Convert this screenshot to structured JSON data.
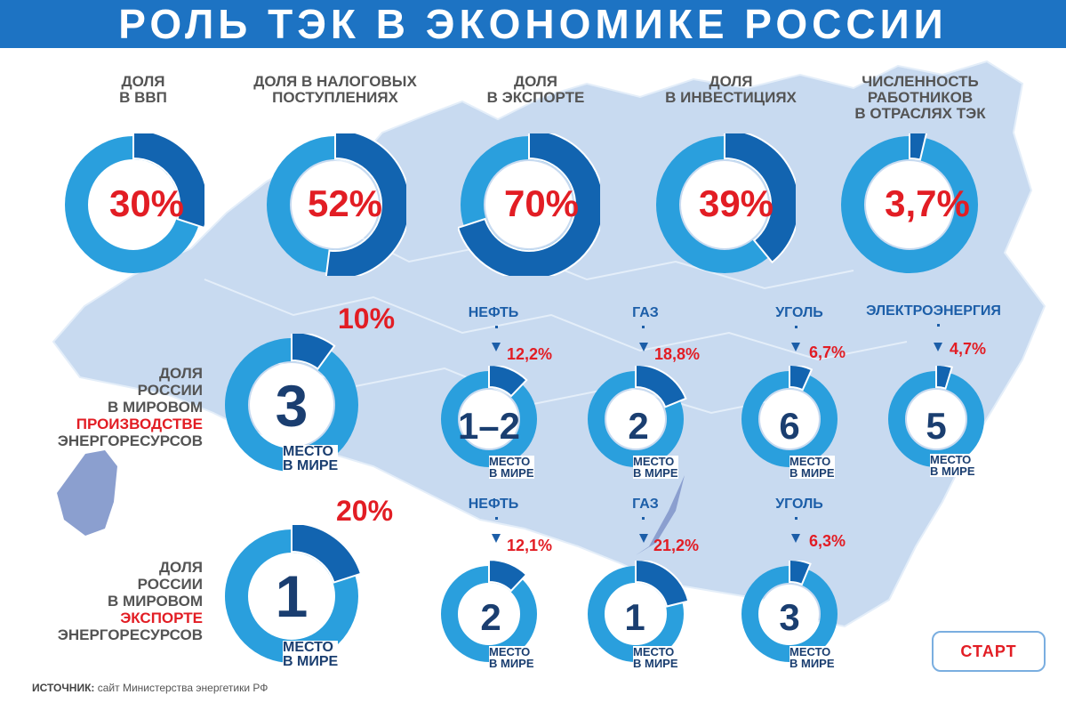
{
  "title": "РОЛЬ ТЭК В ЭКОНОМИКЕ РОССИИ",
  "colors": {
    "header": "#1d73c3",
    "ring_light": "#2a9fdd",
    "ring_dark": "#1264b0",
    "accent_red": "#e21d24",
    "map": "#c8daf0"
  },
  "top": [
    {
      "label1": "ДОЛЯ",
      "label2": "В ВВП",
      "label3": "",
      "value": "30%",
      "fraction": 0.3
    },
    {
      "label1": "ДОЛЯ В НАЛОГОВЫХ",
      "label2": "ПОСТУПЛЕНИЯХ",
      "label3": "",
      "value": "52%",
      "fraction": 0.52
    },
    {
      "label1": "ДОЛЯ",
      "label2": "В ЭКСПОРТЕ",
      "label3": "",
      "value": "70%",
      "fraction": 0.7
    },
    {
      "label1": "ДОЛЯ",
      "label2": "В ИНВЕСТИЦИЯХ",
      "label3": "",
      "value": "39%",
      "fraction": 0.39
    },
    {
      "label1": "ЧИСЛЕННОСТЬ",
      "label2": "РАБОТНИКОВ",
      "label3": "В ОТРАСЛЯХ ТЭК",
      "value": "3,7%",
      "fraction": 0.037
    }
  ],
  "production": {
    "label": [
      "ДОЛЯ",
      "РОССИИ",
      "В МИРОВОМ",
      "ПРОИЗВОДСТВЕ",
      "ЭНЕРГОРЕСУРСОВ"
    ],
    "total": {
      "share": "10%",
      "fraction": 0.1,
      "rank": "3",
      "place": [
        "МЕСТО",
        "В МИРЕ"
      ]
    },
    "items": [
      {
        "resource": "НЕФТЬ",
        "share": "12,2%",
        "fraction": 0.122,
        "rank": "1–2",
        "place": [
          "МЕСТО",
          "В МИРЕ"
        ]
      },
      {
        "resource": "ГАЗ",
        "share": "18,8%",
        "fraction": 0.188,
        "rank": "2",
        "place": [
          "МЕСТО",
          "В МИРЕ"
        ]
      },
      {
        "resource": "УГОЛЬ",
        "share": "6,7%",
        "fraction": 0.067,
        "rank": "6",
        "place": [
          "МЕСТО",
          "В МИРЕ"
        ]
      },
      {
        "resource": "ЭЛЕКТРОЭНЕРГИЯ",
        "share": "4,7%",
        "fraction": 0.047,
        "rank": "5",
        "place": [
          "МЕСТО",
          "В МИРЕ"
        ]
      }
    ]
  },
  "export": {
    "label": [
      "ДОЛЯ",
      "РОССИИ",
      "В МИРОВОМ",
      "ЭКСПОРТЕ",
      "ЭНЕРГОРЕСУРСОВ"
    ],
    "total": {
      "share": "20%",
      "fraction": 0.2,
      "rank": "1",
      "place": [
        "МЕСТО",
        "В МИРЕ"
      ]
    },
    "items": [
      {
        "resource": "НЕФТЬ",
        "share": "12,1%",
        "fraction": 0.121,
        "rank": "2",
        "place": [
          "МЕСТО",
          "В МИРЕ"
        ]
      },
      {
        "resource": "ГАЗ",
        "share": "21,2%",
        "fraction": 0.212,
        "rank": "1",
        "place": [
          "МЕСТО",
          "В МИРЕ"
        ]
      },
      {
        "resource": "УГОЛЬ",
        "share": "6,3%",
        "fraction": 0.063,
        "rank": "3",
        "place": [
          "МЕСТО",
          "В МИРЕ"
        ]
      }
    ]
  },
  "source": {
    "label": "ИСТОЧНИК:",
    "text": " сайт Министерства энергетики РФ"
  },
  "start_button": "СТАРТ"
}
